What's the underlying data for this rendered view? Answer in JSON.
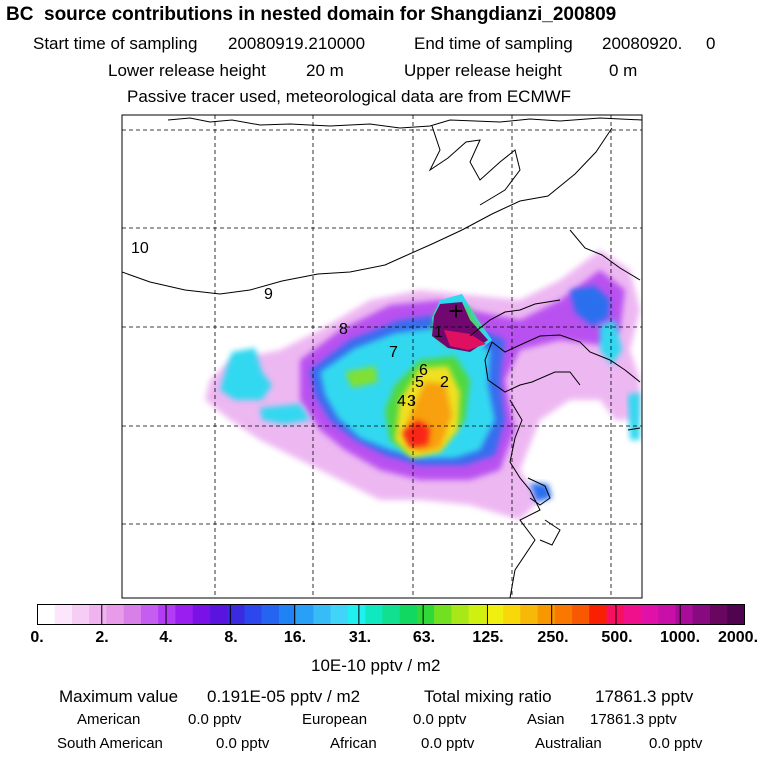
{
  "header": {
    "title": "BC  source contributions in nested domain for Shangdianzi_200809",
    "start_label": "Start time of sampling",
    "start_value": "20080919.210000",
    "end_label": "End time of sampling",
    "end_value": "20080920.     0",
    "lower_label": "Lower release height",
    "lower_value": "20 m",
    "upper_label": "Upper release height",
    "upper_value": "0 m",
    "tracer_note": "Passive tracer used, meteorological data are from ECMWF"
  },
  "map": {
    "region_labels": [
      "10",
      "9",
      "8",
      "7",
      "6",
      "5",
      "2",
      "4",
      "3",
      "1"
    ],
    "receptor_marker": "+",
    "colors": {
      "land_outline": "#000000",
      "grid": "#000000"
    }
  },
  "colorbar": {
    "tick_labels": [
      "0.",
      "2.",
      "4.",
      "8.",
      "16.",
      "31.",
      "63.",
      "125.",
      "250.",
      "500.",
      "1000.",
      "2000."
    ],
    "units": "10E-10 pptv / m2",
    "colors": [
      "#ffffff",
      "#fbe6fb",
      "#f5cdf5",
      "#efb4ef",
      "#e89be8",
      "#d880e8",
      "#c55ef0",
      "#b23cf5",
      "#9b1ef0",
      "#7a12e8",
      "#5a14e0",
      "#3a2ae0",
      "#2c48ec",
      "#2464f0",
      "#1f82f5",
      "#28a0f8",
      "#38bcf8",
      "#40d4f8",
      "#20f0f0",
      "#10e8c0",
      "#10e090",
      "#10d860",
      "#30d838",
      "#70e020",
      "#a8e818",
      "#d0f010",
      "#f0f010",
      "#f8d808",
      "#f8b808",
      "#f89800",
      "#f87800",
      "#f85800",
      "#f82000",
      "#f81060",
      "#f0108c",
      "#e010a8",
      "#c810a8",
      "#a80c98",
      "#880a80",
      "#680660",
      "#500450"
    ]
  },
  "footer": {
    "max_label": "Maximum value",
    "max_value": "0.191E-05 pptv / m2",
    "total_label": "Total mixing ratio",
    "total_value": "17861.3 pptv",
    "regions": [
      {
        "name": "American",
        "value": "0.0 pptv"
      },
      {
        "name": "European",
        "value": "0.0 pptv"
      },
      {
        "name": "Asian",
        "value": "17861.3 pptv"
      },
      {
        "name": "South American",
        "value": "0.0 pptv"
      },
      {
        "name": "African",
        "value": "0.0 pptv"
      },
      {
        "name": "Australian",
        "value": "0.0 pptv"
      }
    ]
  }
}
